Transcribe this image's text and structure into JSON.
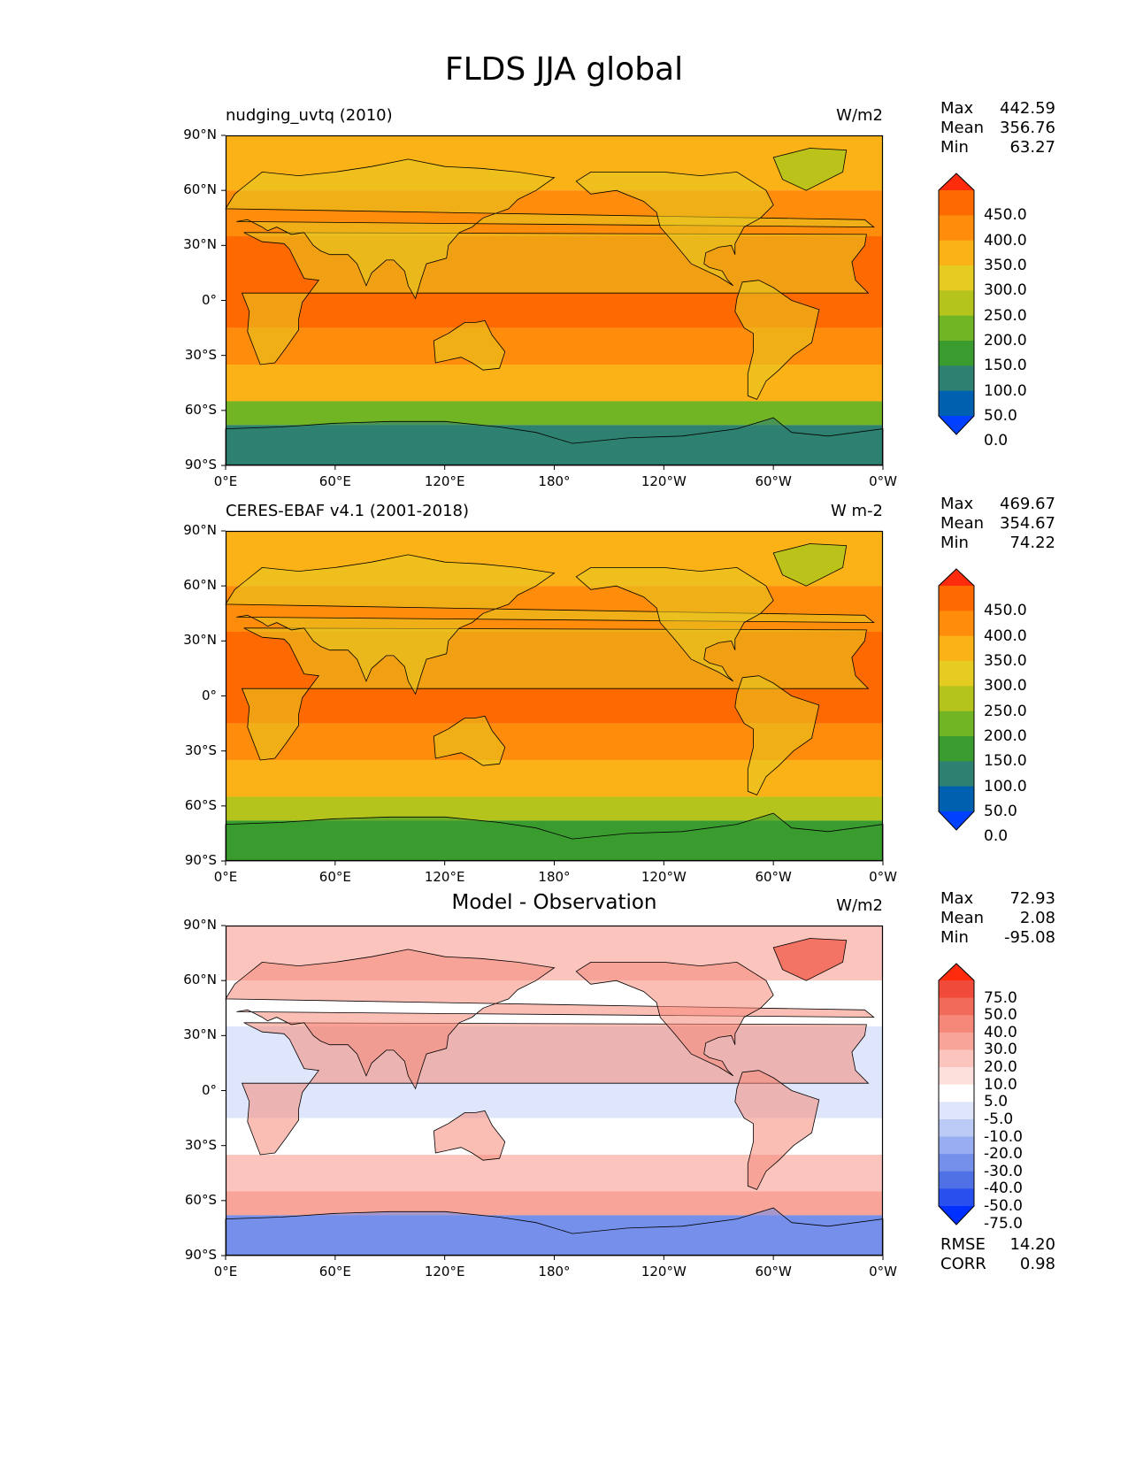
{
  "title": "FLDS JJA global",
  "lat_ticks": [
    "90°N",
    "60°N",
    "30°N",
    "0°",
    "30°S",
    "60°S",
    "90°S"
  ],
  "lon_ticks": [
    "0°E",
    "60°E",
    "120°E",
    "180°",
    "120°W",
    "60°W",
    "0°W"
  ],
  "panels": [
    {
      "left_title": "nudging_uvtq (2010)",
      "center_title": "",
      "units": "W/m2",
      "stats": {
        "max_label": "Max",
        "max": "442.59",
        "mean_label": "Mean",
        "mean": "356.76",
        "min_label": "Min",
        "min": "63.27"
      },
      "colorbar": {
        "labels": [
          "450.0",
          "400.0",
          "350.0",
          "300.0",
          "250.0",
          "200.0",
          "150.0",
          "100.0",
          "50.0",
          "0.0"
        ],
        "colors": [
          "#ff2b0d",
          "#ff6a00",
          "#ff8c0a",
          "#fbb217",
          "#e6cc22",
          "#b4c41c",
          "#72b524",
          "#3a9c2e",
          "#2e8070",
          "#0060b0",
          "#0040ff"
        ]
      },
      "map_palette": {
        "polar": "#2e8070",
        "southern_green": "#72b524",
        "mid": "#fbb217",
        "warm": "#ff8c0a",
        "tropics": "#ff6a00",
        "land_dry": "#e6cc22",
        "greenland": "#b4c41c"
      }
    },
    {
      "left_title": "CERES-EBAF v4.1 (2001-2018)",
      "center_title": "",
      "units": "W m-2",
      "stats": {
        "max_label": "Max",
        "max": "469.67",
        "mean_label": "Mean",
        "mean": "354.67",
        "min_label": "Min",
        "min": "74.22"
      },
      "colorbar": {
        "labels": [
          "450.0",
          "400.0",
          "350.0",
          "300.0",
          "250.0",
          "200.0",
          "150.0",
          "100.0",
          "50.0",
          "0.0"
        ],
        "colors": [
          "#ff2b0d",
          "#ff6a00",
          "#ff8c0a",
          "#fbb217",
          "#e6cc22",
          "#b4c41c",
          "#72b524",
          "#3a9c2e",
          "#2e8070",
          "#0060b0",
          "#0040ff"
        ]
      },
      "map_palette": {
        "polar": "#3a9c2e",
        "southern_green": "#b4c41c",
        "mid": "#fbb217",
        "warm": "#ff8c0a",
        "tropics": "#ff6a00",
        "land_dry": "#e6cc22",
        "greenland": "#b4c41c"
      }
    },
    {
      "left_title": "",
      "center_title": "Model - Observation",
      "units": "W/m2",
      "stats": {
        "max_label": "Max",
        "max": "72.93",
        "mean_label": "Mean",
        "mean": "2.08",
        "min_label": "Min",
        "min": "-95.08"
      },
      "colorbar": {
        "labels": [
          "75.0",
          "50.0",
          "40.0",
          "30.0",
          "20.0",
          "10.0",
          "5.0",
          "-5.0",
          "-10.0",
          "-20.0",
          "-30.0",
          "-40.0",
          "-50.0",
          "-75.0"
        ],
        "colors": [
          "#ff2b0d",
          "#f04a3a",
          "#f26a5a",
          "#f58878",
          "#f8a498",
          "#fbc4bc",
          "#fde0dc",
          "#ffffff",
          "#dfe6fb",
          "#bccbf6",
          "#98aef0",
          "#7590ea",
          "#5070e6",
          "#2850ef",
          "#0030ff"
        ]
      },
      "footer": {
        "rmse_label": "RMSE",
        "rmse": "14.20",
        "corr_label": "CORR",
        "corr": "0.98"
      },
      "map_palette": {
        "polar": "#7590ea",
        "southern_green": "#f8a498",
        "mid": "#fbc4bc",
        "warm": "#ffffff",
        "tropics": "#dfe6fb",
        "land_dry": "#f58878",
        "greenland": "#f26a5a"
      }
    }
  ]
}
